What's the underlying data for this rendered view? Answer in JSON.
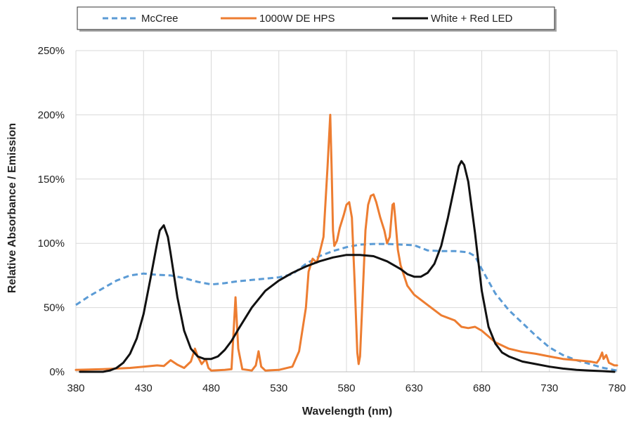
{
  "chart_data": {
    "type": "line",
    "title": "",
    "xlabel": "Wavelength (nm)",
    "ylabel": "Relative Absorbance / Emission",
    "xlim": [
      380,
      780
    ],
    "ylim": [
      0,
      2.5
    ],
    "xticks": [
      380,
      430,
      480,
      530,
      580,
      630,
      680,
      730,
      780
    ],
    "xtick_labels": [
      "380",
      "430",
      "480",
      "530",
      "580",
      "630",
      "680",
      "730",
      "780"
    ],
    "yticks": [
      0,
      0.5,
      1.0,
      1.5,
      2.0,
      2.5
    ],
    "ytick_labels": [
      "0%",
      "50%",
      "100%",
      "150%",
      "200%",
      "250%"
    ],
    "grid": "vertical and horizontal",
    "legend_position": "top",
    "series": [
      {
        "name": "McCree",
        "color": "#5b9bd5",
        "style": "dashed",
        "x": [
          380,
          390,
          400,
          410,
          420,
          430,
          440,
          450,
          460,
          470,
          480,
          490,
          500,
          510,
          520,
          530,
          540,
          550,
          560,
          570,
          580,
          590,
          600,
          610,
          620,
          630,
          640,
          650,
          660,
          670,
          675,
          680,
          690,
          700,
          710,
          720,
          730,
          740,
          750,
          760,
          770,
          780
        ],
        "y": [
          0.52,
          0.59,
          0.65,
          0.71,
          0.75,
          0.765,
          0.755,
          0.75,
          0.73,
          0.7,
          0.68,
          0.69,
          0.705,
          0.715,
          0.725,
          0.735,
          0.76,
          0.84,
          0.9,
          0.94,
          0.97,
          0.99,
          0.995,
          0.995,
          0.99,
          0.985,
          0.945,
          0.94,
          0.94,
          0.93,
          0.9,
          0.8,
          0.61,
          0.48,
          0.38,
          0.28,
          0.19,
          0.13,
          0.09,
          0.06,
          0.03,
          0.01
        ]
      },
      {
        "name": "1000W DE HPS",
        "color": "#ed7d31",
        "style": "solid",
        "x": [
          380,
          400,
          420,
          430,
          440,
          445,
          450,
          455,
          460,
          465,
          468,
          470,
          473,
          476,
          478,
          480,
          490,
          495,
          498,
          500,
          503,
          510,
          513,
          515,
          517,
          520,
          530,
          540,
          545,
          550,
          552,
          555,
          558,
          560,
          563,
          566,
          568,
          569,
          570,
          571,
          573,
          575,
          578,
          580,
          582,
          584,
          586,
          588,
          589,
          590,
          592,
          594,
          596,
          598,
          600,
          602,
          605,
          608,
          610,
          612,
          614,
          615,
          616,
          618,
          620,
          625,
          630,
          640,
          650,
          660,
          665,
          670,
          675,
          680,
          690,
          700,
          710,
          720,
          730,
          740,
          750,
          760,
          765,
          767,
          769,
          770,
          772,
          774,
          776,
          778,
          780
        ],
        "y": [
          0.015,
          0.02,
          0.03,
          0.04,
          0.05,
          0.045,
          0.09,
          0.055,
          0.03,
          0.08,
          0.18,
          0.12,
          0.06,
          0.1,
          0.03,
          0.01,
          0.015,
          0.02,
          0.58,
          0.18,
          0.02,
          0.01,
          0.05,
          0.16,
          0.04,
          0.01,
          0.015,
          0.04,
          0.16,
          0.5,
          0.78,
          0.88,
          0.85,
          0.92,
          1.05,
          1.6,
          2.0,
          1.6,
          1.1,
          0.98,
          1.02,
          1.12,
          1.22,
          1.3,
          1.32,
          1.2,
          0.7,
          0.15,
          0.06,
          0.12,
          0.6,
          1.1,
          1.3,
          1.37,
          1.38,
          1.32,
          1.2,
          1.1,
          1.0,
          1.05,
          1.3,
          1.31,
          1.2,
          0.95,
          0.83,
          0.67,
          0.6,
          0.52,
          0.44,
          0.4,
          0.35,
          0.34,
          0.35,
          0.32,
          0.23,
          0.18,
          0.155,
          0.14,
          0.12,
          0.1,
          0.09,
          0.08,
          0.07,
          0.1,
          0.15,
          0.1,
          0.13,
          0.07,
          0.06,
          0.05,
          0.05
        ]
      },
      {
        "name": "White + Red LED",
        "color": "#111111",
        "style": "solid",
        "x": [
          383,
          390,
          400,
          405,
          410,
          415,
          420,
          425,
          430,
          435,
          440,
          442,
          445,
          448,
          450,
          455,
          460,
          465,
          470,
          475,
          480,
          485,
          490,
          495,
          500,
          510,
          520,
          530,
          540,
          550,
          560,
          570,
          580,
          590,
          600,
          610,
          620,
          625,
          630,
          635,
          640,
          645,
          650,
          655,
          660,
          663,
          665,
          667,
          670,
          675,
          680,
          685,
          690,
          695,
          700,
          710,
          720,
          730,
          740,
          750,
          760,
          770,
          778
        ],
        "y": [
          0.0,
          0.0,
          0.0,
          0.01,
          0.03,
          0.07,
          0.14,
          0.26,
          0.45,
          0.72,
          1.0,
          1.1,
          1.14,
          1.05,
          0.92,
          0.58,
          0.32,
          0.18,
          0.12,
          0.1,
          0.1,
          0.12,
          0.17,
          0.24,
          0.33,
          0.5,
          0.63,
          0.71,
          0.77,
          0.82,
          0.86,
          0.89,
          0.91,
          0.91,
          0.9,
          0.86,
          0.8,
          0.76,
          0.74,
          0.74,
          0.77,
          0.84,
          0.98,
          1.2,
          1.45,
          1.6,
          1.64,
          1.61,
          1.48,
          1.08,
          0.63,
          0.35,
          0.22,
          0.15,
          0.12,
          0.08,
          0.06,
          0.04,
          0.025,
          0.015,
          0.01,
          0.005,
          0.0
        ]
      }
    ]
  }
}
